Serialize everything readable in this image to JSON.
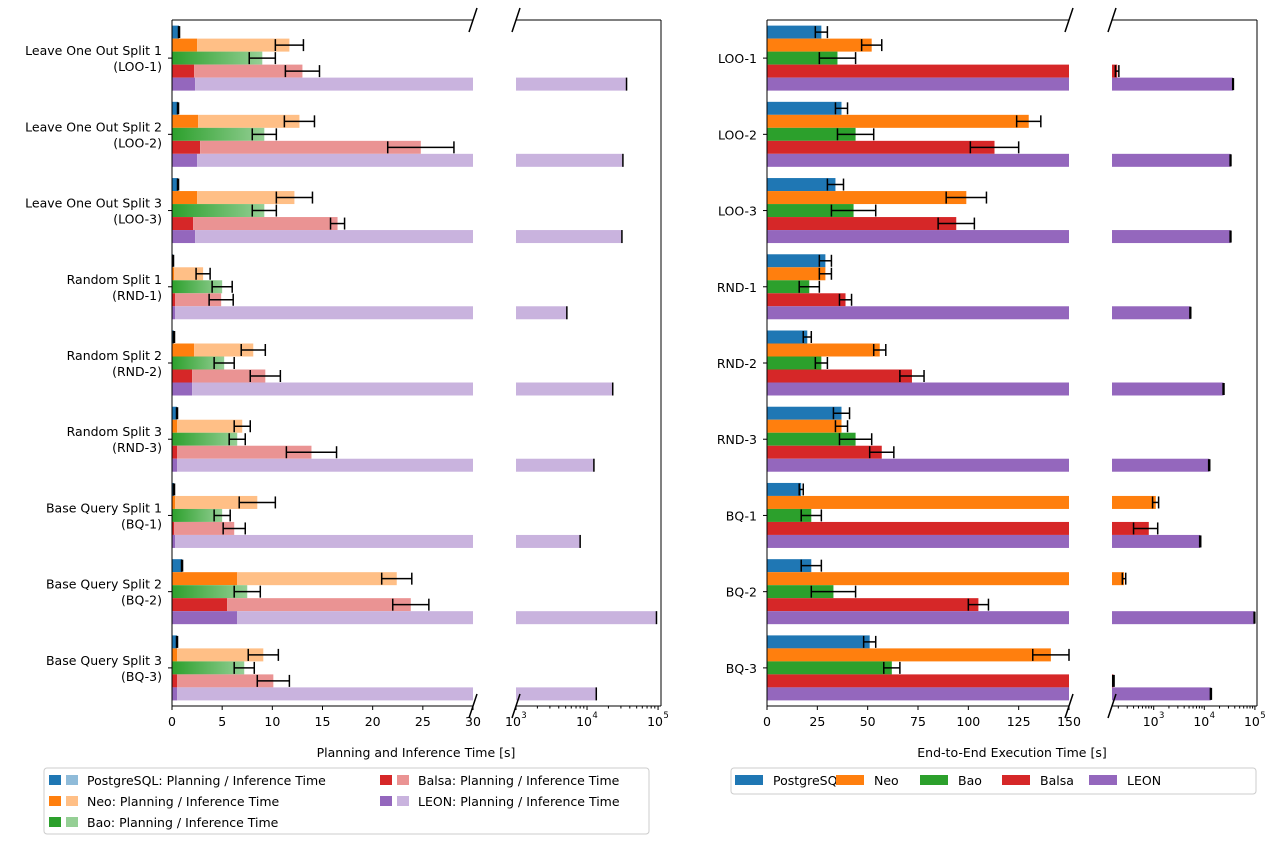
{
  "colors": {
    "PostgreSQL": {
      "dark": "#1f77b4",
      "light": "#8fbbd9"
    },
    "Neo": {
      "dark": "#ff7f0e",
      "light": "#ffbf86"
    },
    "Bao": {
      "dark": "#2ca02c",
      "light": "#95cf95"
    },
    "Balsa": {
      "dark": "#d62728",
      "light": "#ea9393"
    },
    "LEON": {
      "dark": "#9467bd",
      "light": "#c9b3de"
    }
  },
  "chart_data": [
    {
      "type": "bar",
      "orientation": "horizontal",
      "broken_x_axis": true,
      "xlabel": "Planning and Inference Time [s]",
      "xlim_linear": [
        0,
        30
      ],
      "xticks_linear": [
        "0",
        "5",
        "10",
        "15",
        "20",
        "25",
        "30"
      ],
      "xlim_log": [
        1000,
        110000
      ],
      "xticks_log": [
        "10",
        "10",
        "10"
      ],
      "xticks_log_exponents": [
        "3",
        "4",
        "5"
      ],
      "categories": [
        [
          "Leave One Out Split 1",
          "(LOO-1)"
        ],
        [
          "Leave One Out Split 2",
          "(LOO-2)"
        ],
        [
          "Leave One Out Split 3",
          "(LOO-3)"
        ],
        [
          "Random Split 1",
          "(RND-1)"
        ],
        [
          "Random Split 2",
          "(RND-2)"
        ],
        [
          "Random Split 3",
          "(RND-3)"
        ],
        [
          "Base Query Split 1",
          "(BQ-1)"
        ],
        [
          "Base Query Split 2",
          "(BQ-2)"
        ],
        [
          "Base Query Split 3",
          "(BQ-3)"
        ]
      ],
      "series": [
        {
          "name": "PostgreSQL",
          "planning": [
            0.7,
            0.6,
            0.6,
            0.1,
            0.2,
            0.5,
            0.2,
            1.0,
            0.5
          ],
          "inference": [
            0.0,
            0.0,
            0.0,
            0.0,
            0.0,
            0.0,
            0.0,
            0.0,
            0.0
          ],
          "err": [
            0.05,
            0.05,
            0.05,
            0.05,
            0.05,
            0.05,
            0.05,
            0.05,
            0.05
          ]
        },
        {
          "name": "Neo",
          "planning": [
            2.5,
            2.6,
            2.5,
            0.2,
            2.2,
            0.5,
            0.3,
            6.5,
            0.5
          ],
          "inference": [
            9.2,
            10.1,
            9.7,
            2.9,
            5.9,
            6.5,
            8.2,
            15.9,
            8.6
          ],
          "err": [
            1.4,
            1.5,
            1.8,
            0.7,
            1.2,
            0.8,
            1.8,
            1.5,
            1.5
          ]
        },
        {
          "name": "Bao",
          "planning": [
            9.0,
            9.2,
            9.2,
            5.0,
            5.2,
            6.5,
            5.0,
            7.5,
            7.2
          ],
          "inference": [
            0.0,
            0.0,
            0.0,
            0.0,
            0.0,
            0.0,
            0.0,
            0.0,
            0.0
          ],
          "err": [
            1.3,
            1.2,
            1.2,
            1.0,
            1.0,
            0.8,
            0.8,
            1.3,
            1.0
          ],
          "gradient": true
        },
        {
          "name": "Balsa",
          "planning": [
            2.2,
            2.8,
            2.1,
            0.3,
            2.0,
            0.5,
            0.2,
            5.5,
            0.5
          ],
          "inference": [
            10.8,
            22.0,
            14.4,
            4.6,
            7.3,
            13.4,
            6.0,
            18.3,
            9.6
          ],
          "err": [
            1.7,
            3.3,
            0.7,
            1.2,
            1.5,
            2.5,
            1.1,
            1.8,
            1.6
          ]
        },
        {
          "name": "LEON",
          "planning": [
            2.3,
            2.5,
            2.3,
            0.3,
            2.0,
            0.5,
            0.3,
            6.5,
            0.5
          ],
          "inference_log": [
            36000,
            32000,
            31000,
            5200,
            23000,
            12500,
            8000,
            95000,
            13500
          ],
          "err_log": [
            600,
            600,
            600,
            100,
            500,
            300,
            200,
            1500,
            300
          ]
        }
      ],
      "legend": {
        "placement": "bottom",
        "entries": [
          "PostgreSQL: Planning / Inference Time",
          "Neo: Planning / Inference Time",
          "Bao: Planning / Inference Time",
          "Balsa: Planning / Inference Time",
          "LEON: Planning / Inference Time"
        ]
      },
      "grid": false
    },
    {
      "type": "bar",
      "orientation": "horizontal",
      "broken_x_axis": true,
      "xlabel": "End-to-End Execution Time [s]",
      "xlim_linear": [
        0,
        150
      ],
      "xticks_linear": [
        "0",
        "25",
        "50",
        "75",
        "100",
        "125",
        "150"
      ],
      "xlim_log": [
        150,
        110000
      ],
      "xticks_log": [
        "10",
        "10",
        "10"
      ],
      "xticks_log_exponents": [
        "3",
        "4",
        "5"
      ],
      "categories": [
        "LOO-1",
        "LOO-2",
        "LOO-3",
        "RND-1",
        "RND-2",
        "RND-3",
        "BQ-1",
        "BQ-2",
        "BQ-3"
      ],
      "series": [
        {
          "name": "PostgreSQL",
          "values": [
            27,
            37,
            34,
            29,
            20,
            37,
            17,
            22,
            51
          ],
          "err": [
            3,
            3,
            4,
            3,
            2,
            4,
            1,
            5,
            3
          ]
        },
        {
          "name": "Neo",
          "values": [
            52,
            130,
            99,
            29,
            56,
            37,
            1100,
            260,
            141
          ],
          "err": [
            5,
            6,
            10,
            3,
            3,
            3,
            150,
            20,
            9
          ]
        },
        {
          "name": "Bao",
          "values": [
            35,
            44,
            43,
            21,
            27,
            44,
            22,
            33,
            62
          ],
          "err": [
            9,
            9,
            11,
            5,
            3,
            8,
            5,
            11,
            4
          ]
        },
        {
          "name": "Balsa",
          "values": [
            190,
            113,
            94,
            39,
            72,
            57,
            800,
            105,
            160
          ],
          "err": [
            15,
            12,
            9,
            3,
            6,
            6,
            400,
            5,
            5
          ]
        },
        {
          "name": "LEON",
          "values": [
            37000,
            33000,
            33000,
            5300,
            24000,
            12500,
            8300,
            98000,
            13500
          ],
          "err": [
            600,
            600,
            600,
            100,
            500,
            300,
            200,
            1500,
            300
          ]
        }
      ],
      "legend": {
        "placement": "bottom",
        "entries": [
          "PostgreSQL",
          "Neo",
          "Bao",
          "Balsa",
          "LEON"
        ]
      },
      "grid": false
    }
  ]
}
